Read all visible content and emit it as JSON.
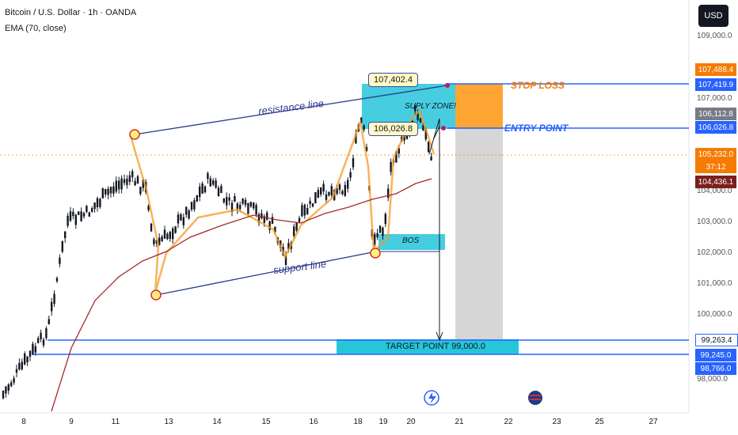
{
  "header": {
    "symbol_line": "Bitcoin / U.S. Dollar · 1h · OANDA",
    "indicator_line": "EMA (70, close)"
  },
  "currency_button": "USD",
  "y_axis_ticks": [
    "109,000.0",
    "107,000.0",
    "104,000.0",
    "103,000.0",
    "102,000.0",
    "101,000.0",
    "100,000.0",
    "98,000.0"
  ],
  "x_axis_ticks": [
    "8",
    "9",
    "11",
    "13",
    "14",
    "15",
    "16",
    "18",
    "19",
    "20",
    "21",
    "22",
    "23",
    "25",
    "27"
  ],
  "price_labels": [
    {
      "text": "107,488.4",
      "color": "#f57c00"
    },
    {
      "text": "107,419.9",
      "color": "#2962ff"
    },
    {
      "text": "106,112.8",
      "color": "#787b86"
    },
    {
      "text": "106,026.8",
      "color": "#2962ff"
    },
    {
      "text": "105,232.0",
      "color": "#f57c00"
    },
    {
      "text": "37:12",
      "color": "#f57c00"
    },
    {
      "text": "104,436.1",
      "color": "#7b1f1f"
    },
    {
      "text": "99,263.4",
      "color": "#ffffff"
    },
    {
      "text": "99,245.0",
      "color": "#2962ff"
    },
    {
      "text": "98,766.0",
      "color": "#2962ff"
    }
  ],
  "annotations": {
    "resistance": "resistance line",
    "support": "support line",
    "supply_zone": "SUPLY ZONE!",
    "bos": "BOS",
    "stop_loss": "STOP LOSS",
    "entry_point": "ENTRY POINT",
    "target": "TARGET POINT  99,000.0",
    "callout_top": "107,402.4",
    "callout_entry": "106,026.8"
  },
  "colors": {
    "candle_up": "#131722",
    "candle_down": "#131722",
    "highlight_line": "#f59a23",
    "ema": "#a52a2a",
    "blue_lines": "#2962ff",
    "cyan_zone": "#26c6da",
    "stop_zone": "#ff8f00",
    "range_box": "#d6d6d6"
  }
}
